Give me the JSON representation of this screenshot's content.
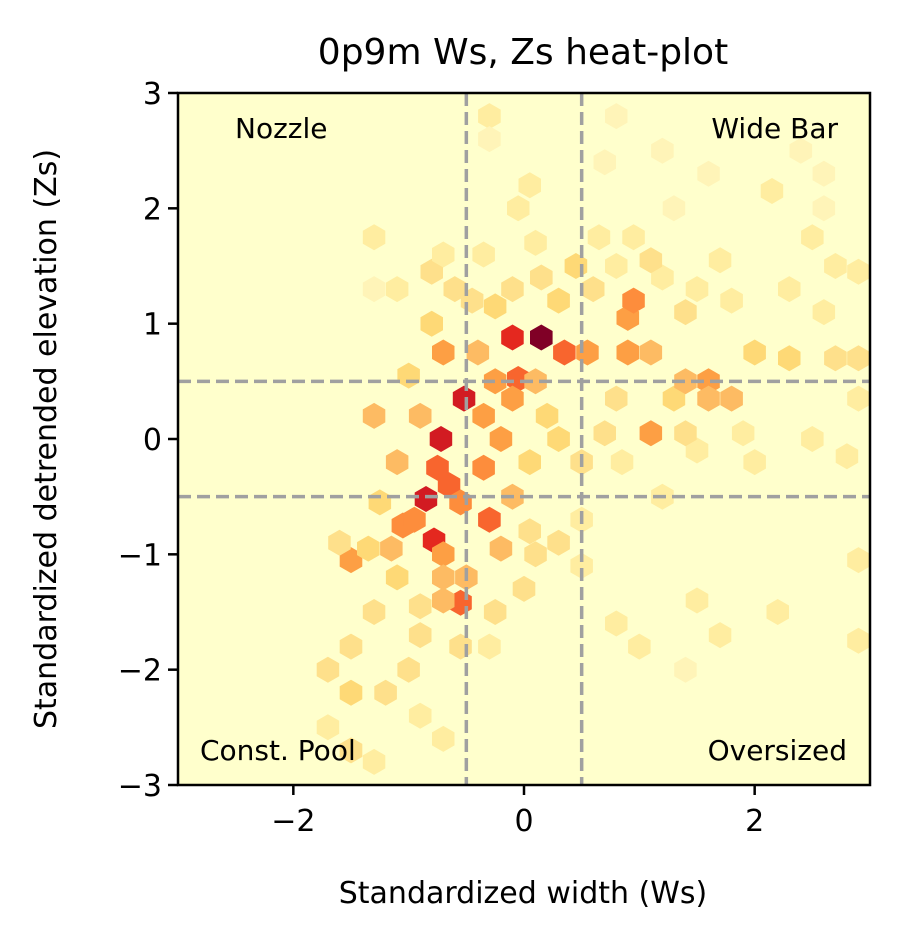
{
  "chart_data": {
    "type": "heatmap",
    "subtype": "hexbin",
    "title": "0p9m Ws, Zs heat-plot",
    "xlabel": "Standardized width (Ws)",
    "ylabel": "Standardized detrended elevation (Zs)",
    "xlim": [
      -3,
      3
    ],
    "ylim": [
      -3,
      3
    ],
    "xticks": [
      -2,
      0,
      2
    ],
    "xtick_labels": [
      "−2",
      "0",
      "2"
    ],
    "yticks": [
      -3,
      -2,
      -1,
      0,
      1,
      2,
      3
    ],
    "ytick_labels": [
      "−3",
      "−2",
      "−1",
      "0",
      "1",
      "2",
      "3"
    ],
    "colormap": "YlOrRd",
    "background_color": "#ffffcc",
    "reference_lines": {
      "x": [
        -0.5,
        0.5
      ],
      "y": [
        -0.5,
        0.5
      ],
      "style": "dashed",
      "color": "#a0a0a0"
    },
    "quadrant_labels": [
      {
        "text": "Nozzle",
        "position": "top-left"
      },
      {
        "text": "Wide Bar",
        "position": "top-right"
      },
      {
        "text": "Const. Pool",
        "position": "bottom-left"
      },
      {
        "text": "Oversized",
        "position": "bottom-right"
      }
    ],
    "color_levels": [
      "#ffffcc",
      "#fff4b8",
      "#ffeda0",
      "#fee08b",
      "#fed976",
      "#fdbb63",
      "#fd9f44",
      "#fd8d3c",
      "#f8652e",
      "#e4281f",
      "#d21b22",
      "#a2062a",
      "#800026"
    ],
    "bins": [
      {
        "x": 0.15,
        "y": 0.88,
        "v": 12
      },
      {
        "x": -0.1,
        "y": 0.88,
        "v": 9
      },
      {
        "x": 0.35,
        "y": 0.75,
        "v": 8
      },
      {
        "x": -0.52,
        "y": 0.35,
        "v": 10
      },
      {
        "x": -0.72,
        "y": 0.0,
        "v": 10
      },
      {
        "x": -0.85,
        "y": -0.52,
        "v": 10
      },
      {
        "x": -0.78,
        "y": -0.88,
        "v": 9
      },
      {
        "x": -0.3,
        "y": -0.7,
        "v": 8
      },
      {
        "x": -0.05,
        "y": 0.52,
        "v": 8
      },
      {
        "x": -0.55,
        "y": -1.42,
        "v": 8
      },
      {
        "x": 0.9,
        "y": 1.05,
        "v": 6
      },
      {
        "x": 0.95,
        "y": 1.2,
        "v": 7
      },
      {
        "x": -1.05,
        "y": -0.75,
        "v": 7
      },
      {
        "x": -0.95,
        "y": -0.7,
        "v": 7
      },
      {
        "x": -1.5,
        "y": -1.05,
        "v": 6
      },
      {
        "x": -0.1,
        "y": 0.35,
        "v": 6
      },
      {
        "x": -0.25,
        "y": 0.5,
        "v": 6
      },
      {
        "x": 0.1,
        "y": 0.5,
        "v": 5
      },
      {
        "x": 1.1,
        "y": 0.75,
        "v": 5
      },
      {
        "x": 0.55,
        "y": 0.75,
        "v": 6
      },
      {
        "x": 0.9,
        "y": 0.75,
        "v": 6
      },
      {
        "x": 1.6,
        "y": 0.5,
        "v": 6
      },
      {
        "x": 1.6,
        "y": 0.35,
        "v": 5
      },
      {
        "x": 1.8,
        "y": 0.35,
        "v": 5
      },
      {
        "x": 1.1,
        "y": 0.05,
        "v": 6
      },
      {
        "x": -0.75,
        "y": -0.25,
        "v": 8
      },
      {
        "x": -0.65,
        "y": -0.4,
        "v": 8
      },
      {
        "x": -0.55,
        "y": -0.55,
        "v": 7
      },
      {
        "x": -0.35,
        "y": -0.25,
        "v": 7
      },
      {
        "x": -0.2,
        "y": 0.0,
        "v": 6
      },
      {
        "x": -0.4,
        "y": 0.75,
        "v": 5
      },
      {
        "x": -0.35,
        "y": 0.2,
        "v": 6
      },
      {
        "x": -0.9,
        "y": 0.2,
        "v": 5
      },
      {
        "x": -0.7,
        "y": 0.75,
        "v": 6
      },
      {
        "x": -0.8,
        "y": 1.0,
        "v": 4
      },
      {
        "x": -1.0,
        "y": 0.55,
        "v": 4
      },
      {
        "x": -1.3,
        "y": 0.2,
        "v": 5
      },
      {
        "x": -1.1,
        "y": -0.2,
        "v": 5
      },
      {
        "x": -1.25,
        "y": -0.55,
        "v": 4
      },
      {
        "x": -0.7,
        "y": -1.0,
        "v": 6
      },
      {
        "x": -0.7,
        "y": -1.2,
        "v": 5
      },
      {
        "x": -0.7,
        "y": -1.4,
        "v": 5
      },
      {
        "x": -0.5,
        "y": -1.2,
        "v": 5
      },
      {
        "x": -1.1,
        "y": -1.2,
        "v": 4
      },
      {
        "x": -0.2,
        "y": -0.95,
        "v": 5
      },
      {
        "x": -0.1,
        "y": -0.5,
        "v": 5
      },
      {
        "x": 0.2,
        "y": 0.2,
        "v": 4
      },
      {
        "x": 0.3,
        "y": 0.0,
        "v": 4
      },
      {
        "x": 0.5,
        "y": -0.2,
        "v": 3
      },
      {
        "x": 0.05,
        "y": -0.2,
        "v": 4
      },
      {
        "x": 0.0,
        "y": -1.3,
        "v": 3
      },
      {
        "x": -0.25,
        "y": -1.5,
        "v": 3
      },
      {
        "x": -1.3,
        "y": -1.5,
        "v": 3
      },
      {
        "x": -1.5,
        "y": -1.8,
        "v": 3
      },
      {
        "x": -1.5,
        "y": -2.2,
        "v": 4
      },
      {
        "x": -1.7,
        "y": -2.0,
        "v": 3
      },
      {
        "x": -1.2,
        "y": -2.2,
        "v": 3
      },
      {
        "x": -0.55,
        "y": -1.8,
        "v": 3
      },
      {
        "x": -0.3,
        "y": -1.8,
        "v": 2
      },
      {
        "x": -0.9,
        "y": -1.7,
        "v": 3
      },
      {
        "x": -1.5,
        "y": -2.7,
        "v": 3
      },
      {
        "x": -1.3,
        "y": -2.8,
        "v": 2
      },
      {
        "x": -1.7,
        "y": -2.5,
        "v": 2
      },
      {
        "x": -0.9,
        "y": -2.4,
        "v": 2
      },
      {
        "x": -0.7,
        "y": -2.6,
        "v": 2
      },
      {
        "x": -1.0,
        "y": -2.0,
        "v": 3
      },
      {
        "x": -0.9,
        "y": -1.45,
        "v": 3
      },
      {
        "x": 0.45,
        "y": 1.5,
        "v": 4
      },
      {
        "x": 0.3,
        "y": 1.2,
        "v": 4
      },
      {
        "x": 0.15,
        "y": 1.4,
        "v": 3
      },
      {
        "x": -0.1,
        "y": 1.3,
        "v": 3
      },
      {
        "x": -0.25,
        "y": 1.15,
        "v": 4
      },
      {
        "x": -0.45,
        "y": 1.2,
        "v": 3
      },
      {
        "x": -0.6,
        "y": 1.3,
        "v": 3
      },
      {
        "x": -0.8,
        "y": 1.45,
        "v": 3
      },
      {
        "x": -0.7,
        "y": 1.6,
        "v": 2
      },
      {
        "x": -0.35,
        "y": 1.6,
        "v": 2
      },
      {
        "x": 0.1,
        "y": 1.7,
        "v": 2
      },
      {
        "x": 0.6,
        "y": 1.3,
        "v": 3
      },
      {
        "x": 0.8,
        "y": 1.5,
        "v": 2
      },
      {
        "x": 1.2,
        "y": 1.4,
        "v": 2
      },
      {
        "x": 1.4,
        "y": 1.1,
        "v": 3
      },
      {
        "x": 1.5,
        "y": 1.3,
        "v": 2
      },
      {
        "x": 1.8,
        "y": 1.2,
        "v": 2
      },
      {
        "x": 2.3,
        "y": 1.3,
        "v": 2
      },
      {
        "x": 2.6,
        "y": 1.1,
        "v": 2
      },
      {
        "x": 2.3,
        "y": 0.7,
        "v": 4
      },
      {
        "x": 2.0,
        "y": 0.75,
        "v": 4
      },
      {
        "x": 2.7,
        "y": 0.7,
        "v": 3
      },
      {
        "x": 2.9,
        "y": 0.7,
        "v": 3
      },
      {
        "x": 2.9,
        "y": 1.45,
        "v": 2
      },
      {
        "x": 2.7,
        "y": 1.5,
        "v": 2
      },
      {
        "x": 2.9,
        "y": 0.35,
        "v": 2
      },
      {
        "x": 2.5,
        "y": 0.0,
        "v": 2
      },
      {
        "x": 2.8,
        "y": -0.15,
        "v": 2
      },
      {
        "x": 1.3,
        "y": 0.35,
        "v": 4
      },
      {
        "x": 1.4,
        "y": 0.5,
        "v": 5
      },
      {
        "x": 0.8,
        "y": 0.35,
        "v": 3
      },
      {
        "x": 0.7,
        "y": 0.05,
        "v": 3
      },
      {
        "x": 0.85,
        "y": -0.2,
        "v": 2
      },
      {
        "x": 1.5,
        "y": -0.1,
        "v": 2
      },
      {
        "x": 1.4,
        "y": 0.05,
        "v": 3
      },
      {
        "x": 1.9,
        "y": 0.05,
        "v": 2
      },
      {
        "x": 2.0,
        "y": -0.2,
        "v": 2
      },
      {
        "x": 1.2,
        "y": -0.5,
        "v": 2
      },
      {
        "x": 0.5,
        "y": -0.7,
        "v": 2
      },
      {
        "x": 0.3,
        "y": -0.9,
        "v": 3
      },
      {
        "x": 0.5,
        "y": -1.1,
        "v": 2
      },
      {
        "x": 0.8,
        "y": -1.6,
        "v": 2
      },
      {
        "x": 1.0,
        "y": -1.8,
        "v": 2
      },
      {
        "x": 1.5,
        "y": -1.4,
        "v": 2
      },
      {
        "x": 1.7,
        "y": -1.7,
        "v": 2
      },
      {
        "x": 2.2,
        "y": -1.5,
        "v": 2
      },
      {
        "x": 2.9,
        "y": -1.05,
        "v": 2
      },
      {
        "x": 2.9,
        "y": -1.75,
        "v": 2
      },
      {
        "x": 1.4,
        "y": -2.0,
        "v": 1
      },
      {
        "x": 0.1,
        "y": -1.0,
        "v": 3
      },
      {
        "x": 0.05,
        "y": -0.8,
        "v": 3
      },
      {
        "x": -1.6,
        "y": -0.9,
        "v": 3
      },
      {
        "x": -1.35,
        "y": -0.95,
        "v": 4
      },
      {
        "x": -1.15,
        "y": -0.95,
        "v": 5
      },
      {
        "x": 2.15,
        "y": 2.15,
        "v": 2
      },
      {
        "x": 2.6,
        "y": 2.0,
        "v": 1
      },
      {
        "x": 2.4,
        "y": 2.5,
        "v": 1
      },
      {
        "x": 2.6,
        "y": 2.3,
        "v": 1
      },
      {
        "x": 2.5,
        "y": 1.75,
        "v": 2
      },
      {
        "x": 1.7,
        "y": 1.55,
        "v": 2
      },
      {
        "x": 1.3,
        "y": 2.0,
        "v": 1
      },
      {
        "x": 1.6,
        "y": 2.3,
        "v": 1
      },
      {
        "x": 1.2,
        "y": 2.5,
        "v": 1
      },
      {
        "x": 0.7,
        "y": 2.4,
        "v": 1
      },
      {
        "x": 0.8,
        "y": 2.8,
        "v": 1
      },
      {
        "x": 0.95,
        "y": 1.75,
        "v": 2
      },
      {
        "x": 1.1,
        "y": 1.55,
        "v": 3
      },
      {
        "x": 0.65,
        "y": 1.75,
        "v": 2
      },
      {
        "x": -0.3,
        "y": 2.8,
        "v": 2
      },
      {
        "x": -0.3,
        "y": 2.6,
        "v": 1
      },
      {
        "x": 0.05,
        "y": 2.2,
        "v": 2
      },
      {
        "x": -0.05,
        "y": 2.0,
        "v": 2
      },
      {
        "x": -1.3,
        "y": 1.75,
        "v": 2
      },
      {
        "x": -1.3,
        "y": 1.3,
        "v": 1
      },
      {
        "x": -1.1,
        "y": 1.3,
        "v": 2
      }
    ]
  }
}
